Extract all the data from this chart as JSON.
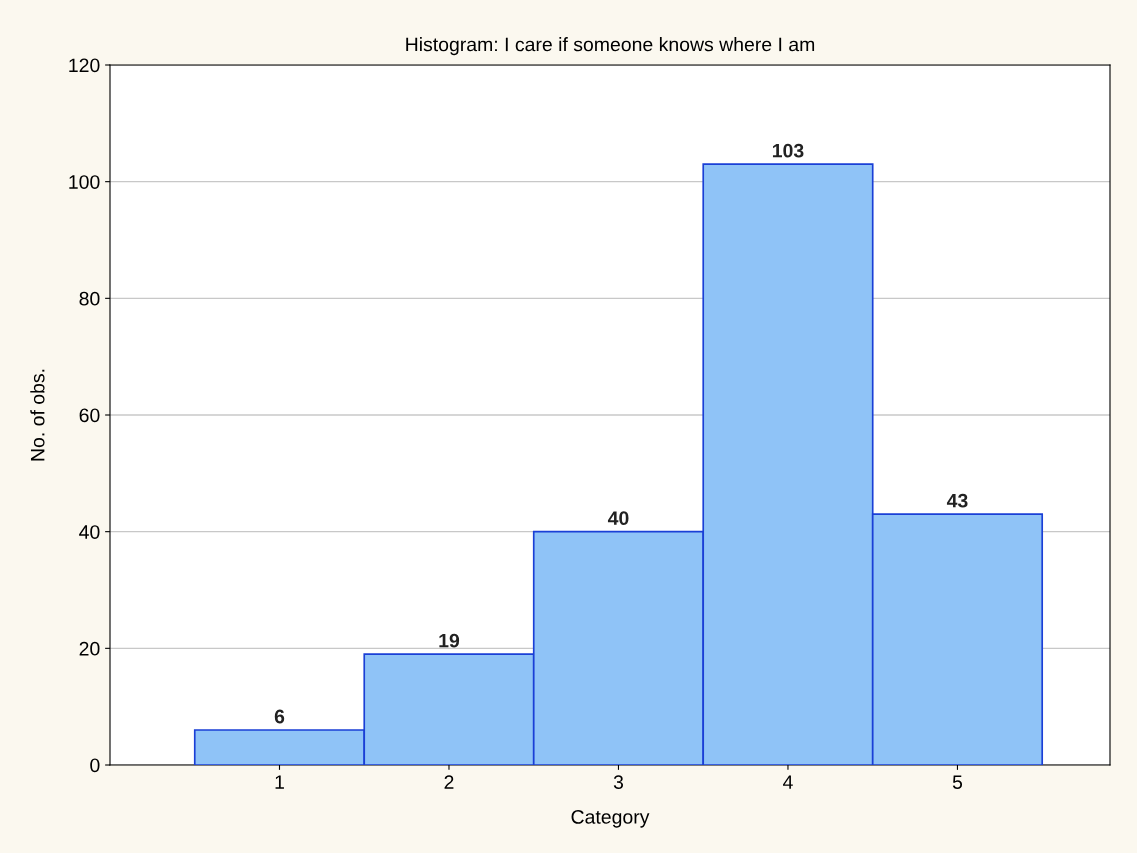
{
  "chart_data": {
    "type": "histogram",
    "title": "Histogram: I care if someone knows where I am",
    "xlabel": "Category",
    "ylabel": "No. of obs.",
    "bins": [
      0.5,
      1.5,
      2.5,
      3.5,
      4.5,
      5.5
    ],
    "values": [
      6,
      19,
      40,
      103,
      43
    ],
    "color": "#8fc3f7",
    "xlim": [
      0,
      5.9
    ],
    "xticks": [
      1,
      2,
      3,
      4,
      5
    ],
    "ylim": [
      0,
      120
    ],
    "yticks": [
      0,
      20,
      40,
      60,
      80,
      100,
      120
    ],
    "grid": "y",
    "data_labels": true
  }
}
